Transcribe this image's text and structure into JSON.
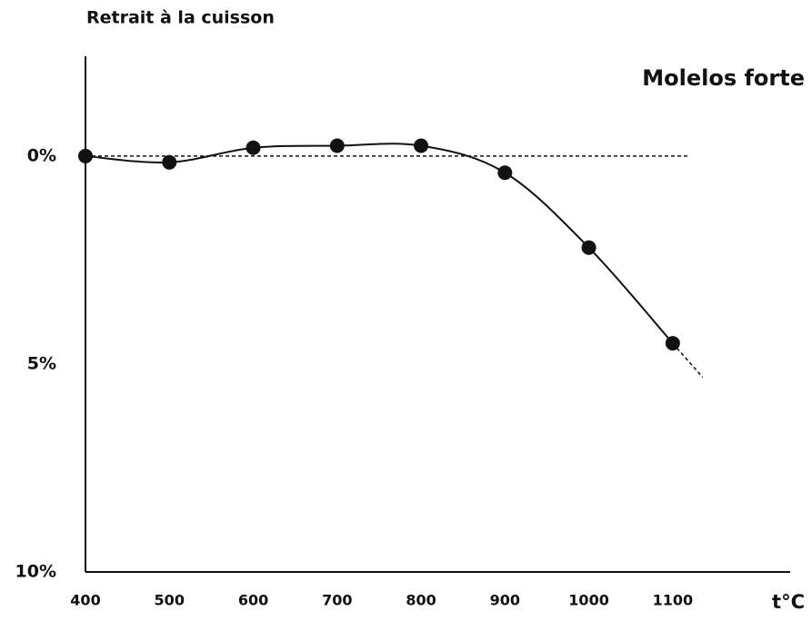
{
  "chart_data": {
    "type": "line",
    "title": "Retrait à la cuisson",
    "subtitle": "Molelos forte",
    "x_label": "t°C",
    "x": [
      400,
      500,
      600,
      700,
      800,
      900,
      1000,
      1100
    ],
    "series": [
      {
        "name": "Molelos forte",
        "color": "#111111",
        "values": [
          0,
          0.15,
          -0.2,
          -0.25,
          -0.25,
          0.4,
          2.2,
          4.5
        ]
      }
    ],
    "xlim": [
      400,
      1240
    ],
    "xticks": [
      400,
      500,
      600,
      700,
      800,
      900,
      1000,
      1100
    ],
    "ylim": [
      10,
      -2.4
    ],
    "yticks": [
      {
        "value": 0,
        "label": "0%"
      },
      {
        "value": 5,
        "label": "5%"
      },
      {
        "value": 10,
        "label": "10%"
      }
    ]
  }
}
